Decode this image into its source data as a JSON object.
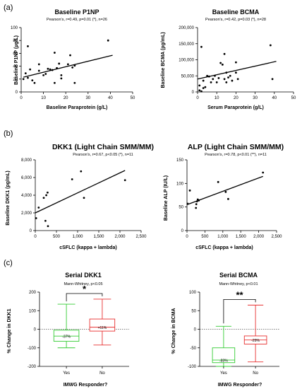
{
  "panel_labels": [
    "(a)",
    "(b)",
    "(c)"
  ],
  "chart_data": [
    {
      "id": "p1np",
      "type": "scatter",
      "title": "Baseline P1NP",
      "stat": "Pearson's, r=0.49, p=0.01 (*), n=26",
      "xlabel": "Baseline Paraprotein (g/L)",
      "ylabel": "Baseline P1NP (µg/L)",
      "xlim": [
        0,
        50
      ],
      "ylim": [
        0,
        100
      ],
      "xticks": [
        "0",
        "10",
        "20",
        "30",
        "40",
        "50"
      ],
      "yticks": [
        "0",
        "20",
        "40",
        "60",
        "80",
        "100"
      ],
      "trendline": [
        [
          1,
          23
        ],
        [
          41,
          57
        ]
      ],
      "points": [
        [
          1,
          20
        ],
        [
          2,
          29
        ],
        [
          3,
          22
        ],
        [
          3,
          71
        ],
        [
          4,
          35
        ],
        [
          5,
          18
        ],
        [
          6,
          14
        ],
        [
          8,
          33
        ],
        [
          8,
          43
        ],
        [
          10,
          26
        ],
        [
          11,
          28
        ],
        [
          12,
          36
        ],
        [
          13,
          35
        ],
        [
          14,
          34
        ],
        [
          15,
          14
        ],
        [
          15,
          61
        ],
        [
          16,
          37
        ],
        [
          17,
          44
        ],
        [
          18,
          21
        ],
        [
          18,
          26
        ],
        [
          21,
          43
        ],
        [
          22,
          57
        ],
        [
          23,
          38
        ],
        [
          24,
          41
        ],
        [
          24,
          14
        ],
        [
          39,
          80
        ]
      ]
    },
    {
      "id": "bcma",
      "type": "scatter",
      "title": "Baseline BCMA",
      "stat": "Pearson's, r=0.42, p=0.03 (*), n=28",
      "xlabel": "Serum Paraprotein (g/L)",
      "ylabel": "Baseline BCMA (pg/mL)",
      "xlim": [
        0,
        50
      ],
      "ylim": [
        0,
        200000
      ],
      "xticks": [
        "0",
        "10",
        "20",
        "30",
        "40",
        "50"
      ],
      "yticks": [
        "0",
        "50,000",
        "100,000",
        "150,000",
        "200,000"
      ],
      "trendline": [
        [
          0,
          40000
        ],
        [
          41,
          95000
        ]
      ],
      "points": [
        [
          1,
          5000
        ],
        [
          1,
          20000
        ],
        [
          2,
          140000
        ],
        [
          2,
          2000
        ],
        [
          3,
          35000
        ],
        [
          3,
          12000
        ],
        [
          4,
          15000
        ],
        [
          5,
          50000
        ],
        [
          6,
          48000
        ],
        [
          7,
          30000
        ],
        [
          8,
          40000
        ],
        [
          9,
          50000
        ],
        [
          10,
          30000
        ],
        [
          11,
          43000
        ],
        [
          12,
          90000
        ],
        [
          13,
          85000
        ],
        [
          14,
          40000
        ],
        [
          14,
          118000
        ],
        [
          15,
          60000
        ],
        [
          15,
          30000
        ],
        [
          16,
          45000
        ],
        [
          17,
          50000
        ],
        [
          18,
          35000
        ],
        [
          20,
          92000
        ],
        [
          20,
          60000
        ],
        [
          21,
          40000
        ],
        [
          38,
          145000
        ],
        [
          39,
          40000
        ]
      ]
    },
    {
      "id": "dkk1",
      "type": "scatter",
      "title": "DKK1 (Light Chain SMM/MM)",
      "stat": "Pearson's, r=0.67, p<0.05 (*), n=11",
      "xlabel": "cSFLC (kappa + lambda)",
      "ylabel": "Baseline DKK1 (pg/mL)",
      "xlim": [
        0,
        2500
      ],
      "ylim": [
        0,
        8000
      ],
      "xticks": [
        "0",
        "500",
        "1,000",
        "1,500",
        "2,000",
        "2,500"
      ],
      "yticks": [
        "0",
        "2,000",
        "4,000",
        "6,000",
        "8,000"
      ],
      "trendline": [
        [
          0,
          2000
        ],
        [
          2120,
          6800
        ]
      ],
      "points": [
        [
          20,
          1400
        ],
        [
          80,
          2600
        ],
        [
          200,
          3700
        ],
        [
          240,
          1100
        ],
        [
          260,
          4000
        ],
        [
          290,
          4300
        ],
        [
          300,
          500
        ],
        [
          870,
          5800
        ],
        [
          1080,
          6700
        ],
        [
          1150,
          3700
        ],
        [
          2120,
          5700
        ]
      ]
    },
    {
      "id": "alp",
      "type": "scatter",
      "title": "ALP (Light Chain SMM/MM)",
      "stat": "Pearson's, r=0.78, p<0.01 (**), n=11",
      "xlabel": "cSFLC (kappa + lambda)",
      "ylabel": "Baseline ALP (IU/L)",
      "xlim": [
        0,
        2500
      ],
      "ylim": [
        0,
        150
      ],
      "xticks": [
        "0",
        "500",
        "1,000",
        "1,500",
        "2,000",
        "2,500"
      ],
      "yticks": [
        "0",
        "50",
        "100",
        "150"
      ],
      "trendline": [
        [
          0,
          55
        ],
        [
          2120,
          115
        ]
      ],
      "points": [
        [
          20,
          57
        ],
        [
          80,
          85
        ],
        [
          250,
          48
        ],
        [
          260,
          56
        ],
        [
          280,
          62
        ],
        [
          300,
          66
        ],
        [
          330,
          64
        ],
        [
          870,
          103
        ],
        [
          1080,
          82
        ],
        [
          1150,
          67
        ],
        [
          2120,
          123
        ]
      ]
    },
    {
      "id": "serial-dkk1",
      "type": "box",
      "title": "Serial DKK1",
      "stat": "Mann-Whitney, p<0.05",
      "significance": "*",
      "xlabel": "IMWG Responder?",
      "ylabel": "% Change in DKK1",
      "ylim": [
        -200,
        200
      ],
      "yticks": [
        "-200",
        "-100",
        "0",
        "100",
        "200"
      ],
      "categories": [
        "Yes",
        "No"
      ],
      "boxes": [
        {
          "category": "Yes",
          "min": -100,
          "q1": -65,
          "median": -37,
          "q3": -5,
          "max": 135,
          "label": "-37%",
          "color": "#33cc33"
        },
        {
          "category": "No",
          "min": -85,
          "q1": -10,
          "median": 11,
          "q3": 55,
          "max": 162,
          "label": "+11%",
          "color": "#e83030"
        }
      ]
    },
    {
      "id": "serial-bcma",
      "type": "box",
      "title": "Serial BCMA",
      "stat": "Mann-Whitney, p<0.01",
      "significance": "**",
      "xlabel": "IMWG Responder?",
      "ylabel": "% Change in BCMA",
      "ylim": [
        -100,
        100
      ],
      "yticks": [
        "-100",
        "-50",
        "0",
        "50",
        "100"
      ],
      "categories": [
        "Yes",
        "No"
      ],
      "boxes": [
        {
          "category": "Yes",
          "min": -100,
          "q1": -90,
          "median": -83,
          "q3": -50,
          "max": 8,
          "label": "-83%",
          "color": "#33cc33"
        },
        {
          "category": "No",
          "min": -88,
          "q1": -40,
          "median": -29,
          "q3": -18,
          "max": 65,
          "label": "-29%",
          "color": "#e83030"
        }
      ]
    }
  ]
}
